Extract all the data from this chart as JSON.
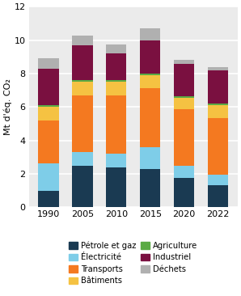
{
  "years": [
    "1990",
    "2005",
    "2010",
    "2015",
    "2020",
    "2022"
  ],
  "sectors": [
    "Pétrole et gaz",
    "Électricité",
    "Transports",
    "Bâtiments",
    "Agriculture",
    "Industriel",
    "Déchets"
  ],
  "colors": [
    "#1a3a52",
    "#7ecde8",
    "#f47920",
    "#f5c242",
    "#5aab44",
    "#7a1040",
    "#b0b0b0"
  ],
  "data": {
    "Pétrole et gaz": [
      1.0,
      2.5,
      2.4,
      2.3,
      1.75,
      1.3
    ],
    "Électricité": [
      1.6,
      0.8,
      0.8,
      1.3,
      0.75,
      0.65
    ],
    "Transports": [
      2.6,
      3.4,
      3.5,
      3.5,
      3.35,
      3.4
    ],
    "Bâtiments": [
      0.8,
      0.8,
      0.8,
      0.8,
      0.7,
      0.75
    ],
    "Agriculture": [
      0.1,
      0.1,
      0.1,
      0.1,
      0.1,
      0.1
    ],
    "Industriel": [
      2.2,
      2.1,
      1.6,
      2.0,
      1.9,
      2.0
    ],
    "Déchets": [
      0.6,
      0.55,
      0.55,
      0.7,
      0.25,
      0.2
    ]
  },
  "ylabel": "Mt d'éq. CO₂",
  "ylim": [
    0,
    12
  ],
  "yticks": [
    0,
    2,
    4,
    6,
    8,
    10,
    12
  ],
  "bg_color": "#ebebeb",
  "bar_width": 0.6,
  "legend_order": [
    "Pétrole et gaz",
    "Électricité",
    "Transports",
    "Bâtiments",
    "Agriculture",
    "Industriel",
    "Déchets"
  ]
}
